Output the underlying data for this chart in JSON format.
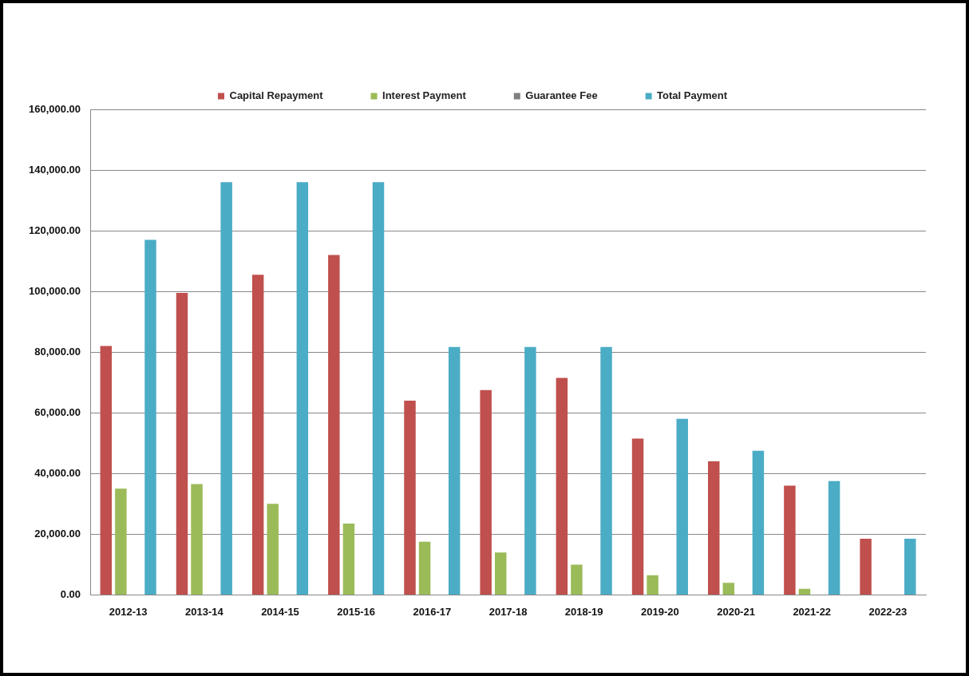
{
  "chart_data": {
    "type": "bar",
    "categories": [
      "2012-13",
      "2013-14",
      "2014-15",
      "2015-16",
      "2016-17",
      "2017-18",
      "2018-19",
      "2019-20",
      "2020-21",
      "2021-22",
      "2022-23"
    ],
    "series": [
      {
        "name": "Capital Repayment",
        "color": "#c0504d",
        "values": [
          82000,
          99500,
          105500,
          112000,
          64000,
          67500,
          71500,
          51500,
          44000,
          36000,
          18500
        ]
      },
      {
        "name": "Interest Payment",
        "color": "#9bbb59",
        "values": [
          35000,
          36500,
          30000,
          23500,
          17500,
          14000,
          10000,
          6500,
          4000,
          2000,
          null
        ]
      },
      {
        "name": "Guarantee Fee",
        "color": "#7f7f7f",
        "values": [
          null,
          null,
          null,
          null,
          null,
          null,
          null,
          null,
          null,
          null,
          null
        ]
      },
      {
        "name": "Total Payment",
        "color": "#4bacc6",
        "values": [
          117000,
          136000,
          136000,
          136000,
          81700,
          81700,
          81700,
          58000,
          47500,
          37500,
          18500
        ]
      }
    ],
    "ylim": [
      0,
      160000
    ],
    "yticks": [
      {
        "value": 0,
        "label": "0.00"
      },
      {
        "value": 20000,
        "label": "20,000.00"
      },
      {
        "value": 40000,
        "label": "40,000.00"
      },
      {
        "value": 60000,
        "label": "60,000.00"
      },
      {
        "value": 80000,
        "label": "80,000.00"
      },
      {
        "value": 100000,
        "label": "100,000.00"
      },
      {
        "value": 120000,
        "label": "120,000.00"
      },
      {
        "value": 140000,
        "label": "140,000.00"
      },
      {
        "value": 160000,
        "label": "160,000.00"
      }
    ],
    "grid": "y",
    "legend": "top"
  }
}
